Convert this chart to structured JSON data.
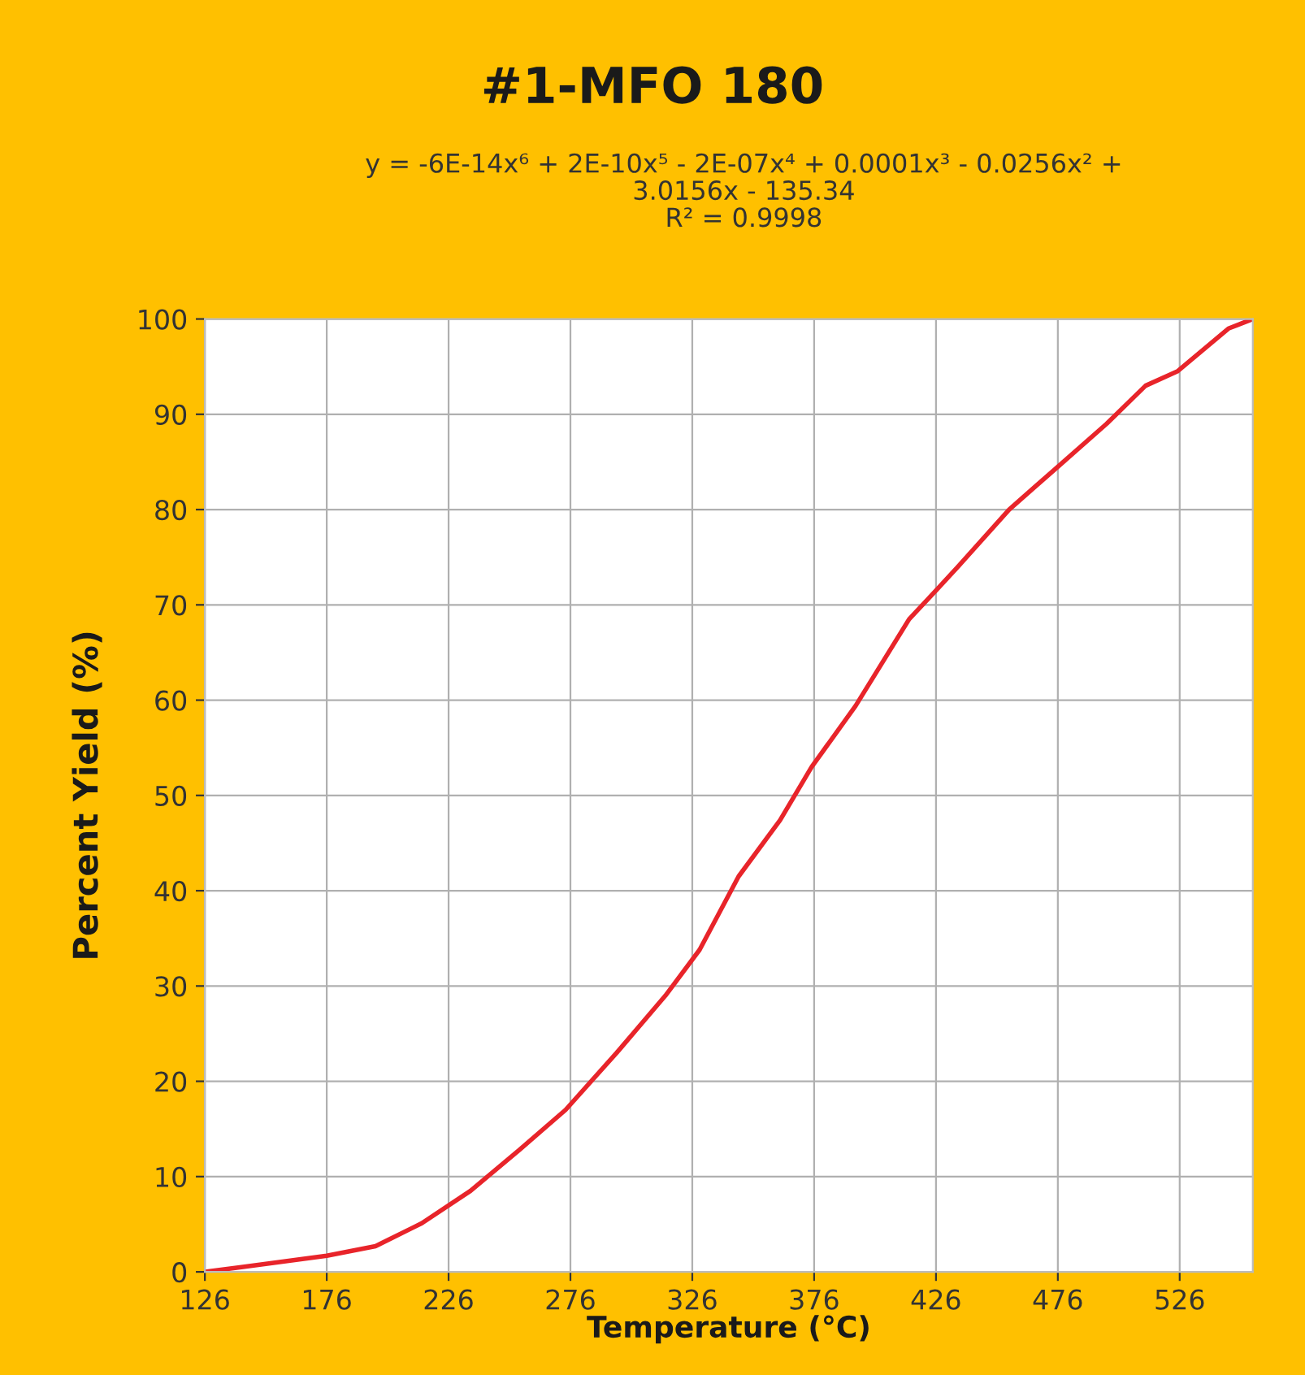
{
  "chart_data": {
    "type": "line",
    "title": "#1-MFO 180",
    "subtitle": "y = -6E-14x⁶ + 2E-10x⁵ - 2E-07x⁴ + 0.0001x³ - 0.0256x² +\n3.0156x - 135.34\nR² = 0.9998",
    "xlabel": "Temperature (°C)",
    "ylabel": "Percent Yield (%)",
    "series": [
      {
        "color": "#e8242a",
        "x": [
          126,
          141,
          176,
          196,
          215,
          235,
          255,
          274,
          295,
          315,
          329,
          345,
          362,
          375,
          393,
          415,
          426,
          435,
          456,
          476,
          496,
          512,
          525,
          546,
          556
        ],
        "values": [
          0,
          0.5,
          1.7,
          2.7,
          5.1,
          8.5,
          12.8,
          17,
          23,
          29,
          33.8,
          41.5,
          47.4,
          53,
          59.4,
          68.5,
          71.5,
          74,
          80,
          84.5,
          89,
          93,
          94.5,
          99,
          100
        ]
      }
    ],
    "xlim": [
      126,
      556
    ],
    "xticks": [
      126,
      176,
      226,
      276,
      326,
      376,
      426,
      476,
      526
    ],
    "ylim": [
      0,
      100
    ],
    "yticks": [
      0,
      10,
      20,
      30,
      40,
      50,
      60,
      70,
      80,
      90,
      100
    ],
    "grid": true,
    "legend": false,
    "marker": "none",
    "line_style": "solid"
  }
}
